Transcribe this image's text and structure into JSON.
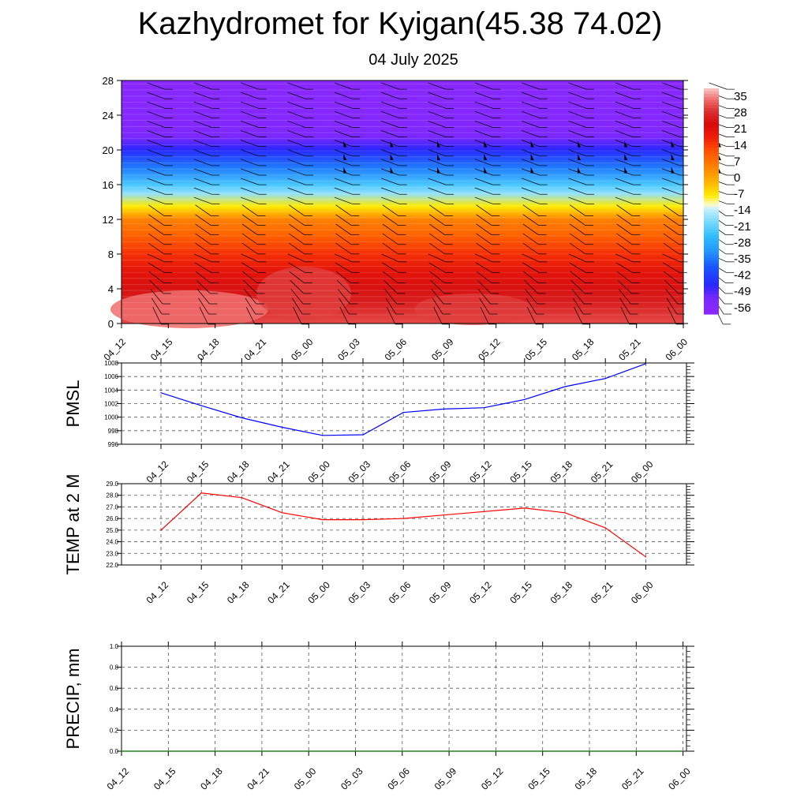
{
  "title": "Kazhydromet for Kyigan(45.38 74.02)",
  "subtitle": "04 July 2025",
  "colors": {
    "pmsl_line": "#0000ff",
    "temp_line": "#ff0000",
    "precip_line": "#006400",
    "grid": "#555555"
  },
  "chart_data": [
    {
      "type": "heatmap",
      "description_fields": "vertical cross-section of temperature with wind barbs",
      "x_ticks": [
        "04_12",
        "04_15",
        "04_18",
        "04_21",
        "05_00",
        "05_03",
        "05_06",
        "05_09",
        "05_12",
        "05_15",
        "05_18",
        "05_21",
        "06_00"
      ],
      "y_ticks": [
        0,
        4,
        8,
        12,
        16,
        20,
        24,
        28
      ],
      "ylim": [
        0,
        28
      ],
      "colorbar_labels": [
        "35",
        "28",
        "21",
        "14",
        "7",
        "0",
        "-7",
        "-14",
        "-21",
        "-28",
        "-35",
        "-42",
        "-49",
        "-56"
      ],
      "colorbar_range": [
        -63,
        38
      ],
      "temperature_profile": [
        {
          "level": 0,
          "value": 30
        },
        {
          "level": 2,
          "value": 26
        },
        {
          "level": 4,
          "value": 23
        },
        {
          "level": 6,
          "value": 19
        },
        {
          "level": 8,
          "value": 14
        },
        {
          "level": 10,
          "value": 8
        },
        {
          "level": 12,
          "value": 3
        },
        {
          "level": 13.5,
          "value": -10
        },
        {
          "level": 15,
          "value": -20
        },
        {
          "level": 16,
          "value": -26
        },
        {
          "level": 18,
          "value": -38
        },
        {
          "level": 20,
          "value": -50
        },
        {
          "level": 21.5,
          "value": -57
        },
        {
          "level": 23,
          "value": -60
        },
        {
          "level": 28,
          "value": -62
        }
      ]
    },
    {
      "type": "line",
      "ylabel": "PMSL",
      "x": [
        "04_12",
        "04_15",
        "04_18",
        "04_21",
        "05_00",
        "05_03",
        "05_06",
        "05_09",
        "05_12",
        "05_15",
        "05_18",
        "05_21",
        "06_00"
      ],
      "values": [
        1003.6,
        1001.7,
        999.9,
        998.5,
        997.3,
        997.4,
        1000.7,
        1001.2,
        1001.4,
        1002.6,
        1004.5,
        1005.7,
        1007.9
      ],
      "ylim": [
        996,
        1008
      ],
      "y_ticks": [
        "1008",
        "1006",
        "1004",
        "1002",
        "1000",
        "998",
        "996"
      ]
    },
    {
      "type": "line",
      "ylabel": "TEMP at 2 M",
      "x": [
        "04_12",
        "04_15",
        "04_18",
        "04_21",
        "05_00",
        "05_03",
        "05_06",
        "05_09",
        "05_12",
        "05_15",
        "05_18",
        "05_21",
        "06_00"
      ],
      "values": [
        25.0,
        28.2,
        27.8,
        26.5,
        25.9,
        25.9,
        26.0,
        26.3,
        26.6,
        26.9,
        26.5,
        25.2,
        22.7
      ],
      "ylim": [
        22,
        29
      ],
      "y_ticks": [
        "29.0",
        "28.0",
        "27.0",
        "26.0",
        "25.0",
        "24.0",
        "23.0",
        "22.0"
      ]
    },
    {
      "type": "line",
      "ylabel": "PRECIP, mm",
      "x": [
        "04_12",
        "04_15",
        "04_18",
        "04_21",
        "05_00",
        "05_03",
        "05_06",
        "05_09",
        "05_12",
        "05_15",
        "05_18",
        "05_21",
        "06_00"
      ],
      "values": [
        0,
        0,
        0,
        0,
        0,
        0,
        0,
        0,
        0,
        0,
        0,
        0,
        0
      ],
      "ylim": [
        0,
        1
      ],
      "y_ticks": [
        "1.0",
        "0.8",
        "0.6",
        "0.4",
        "0.2",
        "0.0"
      ]
    }
  ]
}
